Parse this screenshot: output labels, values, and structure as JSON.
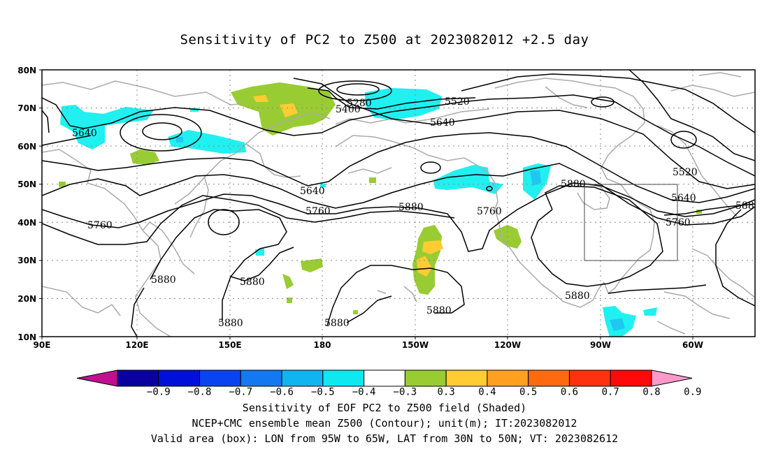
{
  "title": "Sensitivity of PC2 to Z500 at 2023082012 +2.5 day",
  "axes": {
    "lat_labels": [
      "80N",
      "70N",
      "60N",
      "50N",
      "40N",
      "30N",
      "20N",
      "10N"
    ],
    "lon_labels": [
      "90E",
      "120E",
      "150E",
      "180",
      "150W",
      "120W",
      "90W",
      "60W"
    ]
  },
  "contour_labels": [
    {
      "text": "5280"
    },
    {
      "text": "5400"
    },
    {
      "text": "5520"
    },
    {
      "text": "5640"
    },
    {
      "text": "5640"
    },
    {
      "text": "5640"
    },
    {
      "text": "5520"
    },
    {
      "text": "5640"
    },
    {
      "text": "5760"
    },
    {
      "text": "5760"
    },
    {
      "text": "5760"
    },
    {
      "text": "5760"
    },
    {
      "text": "5880"
    },
    {
      "text": "5880"
    },
    {
      "text": "5880"
    },
    {
      "text": "5880"
    },
    {
      "text": "5880"
    },
    {
      "text": "5880"
    },
    {
      "text": "5880"
    },
    {
      "text": "588"
    }
  ],
  "colorbar": {
    "labels": [
      "−0.9",
      "−0.8",
      "−0.7",
      "−0.6",
      "−0.5",
      "−0.4",
      "−0.3",
      "0.3",
      "0.4",
      "0.5",
      "0.6",
      "0.7",
      "0.8",
      "0.9"
    ],
    "colors": [
      "#c01090",
      "#0a00a0",
      "#0010d8",
      "#0a44f0",
      "#1478f0",
      "#10b4f0",
      "#10e8f0",
      "#ffffff",
      "#99cc33",
      "#ffcc33",
      "#ffa020",
      "#ff6a10",
      "#ff3210",
      "#ff0a0a",
      "#ff99cc"
    ]
  },
  "colors": {
    "neg_strong": "#1ec8f0",
    "neg_weak": "#20f0f0",
    "pos_weak": "#99cc33",
    "pos_mid": "#ffcc33",
    "coast": "#aaaaaa",
    "contour": "#000000"
  },
  "footer": {
    "line1": "Sensitivity of EOF PC2 to Z500 field (Shaded)",
    "line2": "NCEP+CMC ensemble mean Z500 (Contour); unit(m); IT:2023082012",
    "line3": "Valid area (box): LON from 95W to 65W, LAT from 30N to 50N; VT: 2023082612"
  }
}
